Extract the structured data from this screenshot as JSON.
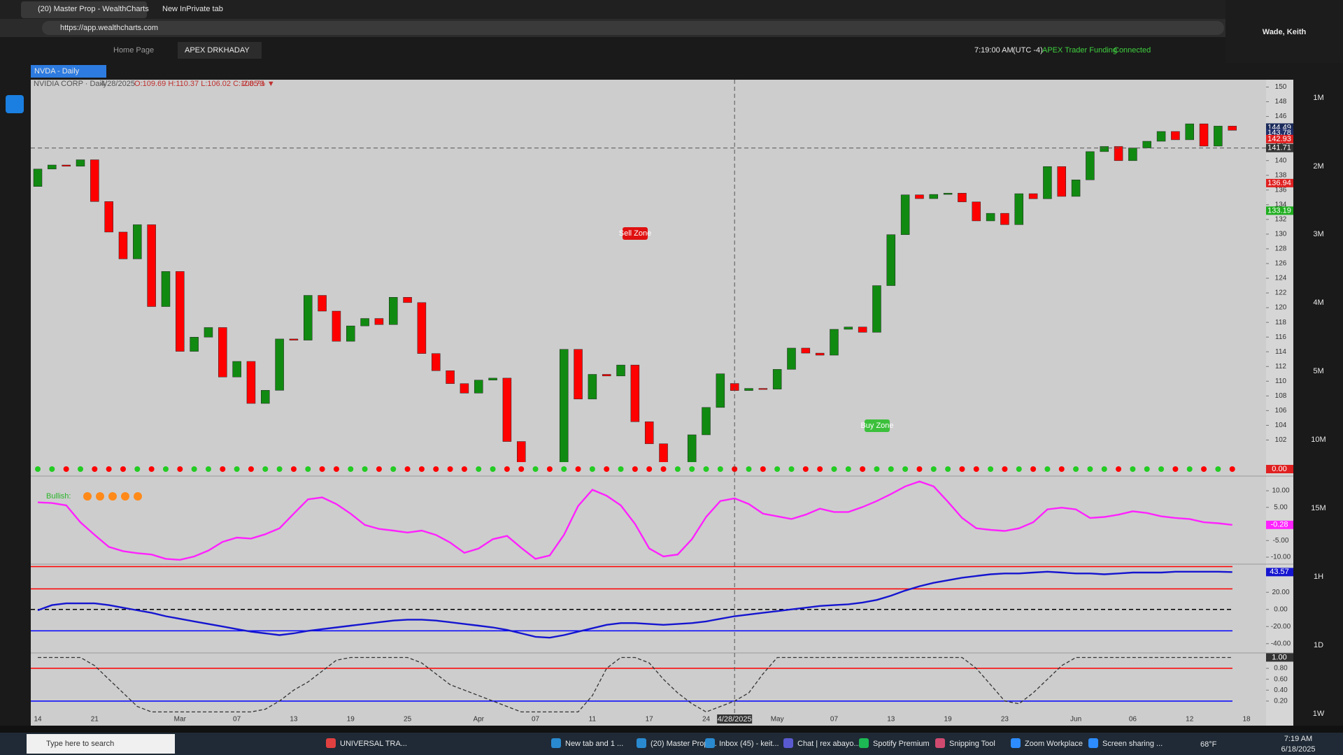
{
  "browser": {
    "tabs": [
      "(20) Master Prop - WealthCharts",
      "New InPrivate tab"
    ],
    "url": "https://app.wealthcharts.com",
    "profile": "Wade, Keith"
  },
  "app": {
    "tabs": [
      "Home Page",
      "APEX DRKHADAY"
    ],
    "time": "7:19:00 AM",
    "timezone": "(UTC -4)",
    "account": "APEX Trader Funding",
    "status": "Connected",
    "symbol_tab": "NVDA - Daily",
    "symbol": "NVIDIA CORP · Daily",
    "date": "4/28/2025",
    "ohlc": "O:109.69 H:110.37 L:106.02 C:108.73",
    "change": "-2.05% ▼",
    "annotations": {
      "sell": "Sell Zone",
      "buy": "Buy Zone",
      "bullish": "Bullish:"
    },
    "timeframes": [
      "1M",
      "2M",
      "3M",
      "4M",
      "5M",
      "10M",
      "15M",
      "1H",
      "1D",
      "1W"
    ]
  },
  "chart_data": [
    {
      "type": "candlestick",
      "categories": [
        "14",
        null,
        null,
        null,
        "21",
        null,
        null,
        null,
        null,
        null,
        "Mar",
        null,
        null,
        null,
        "07",
        null,
        null,
        null,
        "13",
        null,
        null,
        null,
        "19",
        null,
        null,
        null,
        "25",
        null,
        null,
        null,
        null,
        "Apr",
        null,
        null,
        null,
        "07",
        null,
        null,
        null,
        "11",
        null,
        null,
        null,
        "17",
        null,
        null,
        null,
        "24",
        null,
        "4/28/2025",
        null,
        null,
        "May",
        null,
        null,
        null,
        "07",
        null,
        null,
        null,
        "13",
        null,
        null,
        null,
        "19",
        null,
        null,
        null,
        "23",
        null,
        null,
        null,
        null,
        "Jun",
        null,
        null,
        null,
        "06",
        null,
        null,
        null,
        "12",
        null,
        null,
        null,
        "18"
      ],
      "open": [
        136.48,
        138.85,
        139.4,
        139.23,
        140.11,
        134.43,
        130.28,
        126.63,
        131.28,
        120.15,
        124.92,
        114.06,
        115.99,
        117.3,
        110.57,
        112.69,
        106.98,
        108.76,
        115.74,
        115.58,
        121.67,
        119.53,
        115.43,
        117.52,
        118.53,
        117.7,
        121.41,
        120.69,
        113.76,
        111.43,
        109.67,
        108.38,
        110.15,
        110.42,
        101.8,
        94.31,
        97.64,
        96.3,
        114.33,
        107.57,
        110.93,
        110.71,
        112.2,
        104.49,
        101.49,
        96.91,
        98.89,
        102.71,
        106.43,
        109.69,
        108.73,
        109.02,
        108.92,
        111.61,
        114.5,
        113.82,
        113.54,
        117.06,
        117.37,
        116.65,
        123.0,
        129.93,
        135.34,
        134.83,
        135.4,
        135.57,
        134.38,
        131.8,
        132.83,
        131.29,
        135.5,
        134.81,
        139.19,
        135.13,
        137.38,
        141.22,
        141.92,
        139.99,
        141.72,
        142.63,
        143.96,
        142.83,
        145.0,
        141.97,
        144.69,
        null
      ],
      "close": [
        138.85,
        139.4,
        139.23,
        140.11,
        134.43,
        130.28,
        126.63,
        131.28,
        120.15,
        124.92,
        114.06,
        115.99,
        117.3,
        110.57,
        112.69,
        106.98,
        108.76,
        115.74,
        115.58,
        121.67,
        119.53,
        115.43,
        117.52,
        118.53,
        117.7,
        121.41,
        120.69,
        113.76,
        111.43,
        109.67,
        108.38,
        110.15,
        110.42,
        101.8,
        94.31,
        97.64,
        96.3,
        114.33,
        107.57,
        110.93,
        110.71,
        112.2,
        104.49,
        101.49,
        96.91,
        98.89,
        102.71,
        106.43,
        111.01,
        108.73,
        109.02,
        108.92,
        111.61,
        114.5,
        113.82,
        113.54,
        117.06,
        117.37,
        116.65,
        123.0,
        129.93,
        135.34,
        134.83,
        135.4,
        135.57,
        134.38,
        131.8,
        132.83,
        131.29,
        135.5,
        134.81,
        139.19,
        135.13,
        137.38,
        141.22,
        141.92,
        139.99,
        141.72,
        142.63,
        143.96,
        142.83,
        145.0,
        141.97,
        144.69,
        144.12,
        null
      ],
      "up_color": "#118a11",
      "down_color": "#ff0000",
      "ylim": [
        99,
        151
      ],
      "yticks": [
        102,
        104,
        106,
        108,
        110,
        112,
        114,
        116,
        118,
        120,
        122,
        124,
        126,
        128,
        130,
        132,
        134,
        136,
        138,
        140,
        142,
        144,
        146,
        148,
        150
      ],
      "price_tags": [
        {
          "value": 144.49,
          "color": "#1a2a5a"
        },
        {
          "value": 143.78,
          "color": "#22306a"
        },
        {
          "value": 142.93,
          "color": "#e02020"
        },
        {
          "value": 141.71,
          "color": "#333333"
        },
        {
          "value": 136.94,
          "color": "#e02020"
        },
        {
          "value": 133.19,
          "color": "#1fae1f"
        }
      ],
      "signal_tag": {
        "value": 0,
        "label": "0.00"
      }
    },
    {
      "type": "line",
      "color": "#ff22ff",
      "ylim": [
        -11.9,
        14
      ],
      "yticks": [
        {
          "value": 10,
          "label": "10.00"
        },
        {
          "value": 5,
          "label": "5.00"
        },
        {
          "value": -5,
          "label": "-5.00"
        },
        {
          "value": -10,
          "label": "-10.00"
        }
      ],
      "values": [
        6.5,
        6.3,
        5.6,
        0.5,
        -3.3,
        -6.9,
        -8.2,
        -8.8,
        -9.2,
        -10.5,
        -10.8,
        -9.8,
        -8.0,
        -5.4,
        -4.1,
        -4.4,
        -3.1,
        -1.3,
        3.1,
        7.4,
        8.0,
        6.0,
        3.1,
        -0.3,
        -1.5,
        -2.0,
        -2.6,
        -2.0,
        -3.3,
        -5.6,
        -8.7,
        -7.4,
        -4.6,
        -3.6,
        -7.2,
        -10.5,
        -9.5,
        -3.3,
        5.4,
        10.3,
        8.5,
        5.6,
        0,
        -7.4,
        -9.8,
        -9.2,
        -4.6,
        2.1,
        6.9,
        7.7,
        6.0,
        3.1,
        2.3,
        1.5,
        2.8,
        4.6,
        3.6,
        3.6,
        5.1,
        6.9,
        9.0,
        11.3,
        12.8,
        11.3,
        6.7,
        1.8,
        -1.3,
        -1.8,
        -2.1,
        -1.3,
        0.5,
        4.4,
        4.9,
        4.4,
        1.8,
        2.1,
        2.8,
        3.8,
        3.3,
        2.3,
        1.8,
        1.5,
        0.5,
        0.2,
        -0.28,
        null
      ]
    },
    {
      "type": "line",
      "color": "#1515d0",
      "ylim": [
        -50,
        52
      ],
      "yticks": [
        {
          "value": 20,
          "label": "20.00"
        },
        {
          "value": 0,
          "label": "0.00"
        },
        {
          "value": -20,
          "label": "-20.00"
        },
        {
          "value": -40,
          "label": "-40.00"
        }
      ],
      "levels": [
        {
          "value": 50,
          "color": "#ff0000"
        },
        {
          "value": 24,
          "color": "#ff0000"
        },
        {
          "value": 0,
          "color": "#000000",
          "dashed": true
        },
        {
          "value": -25,
          "color": "#0000ff"
        }
      ],
      "values": [
        -1,
        5,
        7,
        7,
        7,
        5,
        2,
        -1,
        -4,
        -8,
        -11,
        -14,
        -17,
        -20,
        -23,
        -26,
        -28,
        -30,
        -28,
        -25,
        -23,
        -21,
        -19,
        -17,
        -15,
        -13,
        -12,
        -12,
        -13,
        -15,
        -17,
        -19,
        -21,
        -24,
        -28,
        -32,
        -33,
        -30,
        -26,
        -22,
        -18,
        -16,
        -16,
        -17,
        -18,
        -17,
        -16,
        -14,
        -11,
        -8,
        -6,
        -4,
        -2,
        0,
        2,
        4,
        5,
        6,
        8,
        11,
        16,
        22,
        27,
        31,
        34,
        37,
        39,
        41,
        42,
        42,
        43,
        44,
        43,
        42,
        42,
        41,
        42,
        43,
        43,
        43,
        44,
        44,
        44,
        44,
        43.57,
        null
      ]
    },
    {
      "type": "line",
      "color": "#333333",
      "dashed": true,
      "ylim": [
        -0.02,
        1.07
      ],
      "yticks": [
        {
          "value": 0.8,
          "label": "0.80"
        },
        {
          "value": 0.6,
          "label": "0.60"
        },
        {
          "value": 0.4,
          "label": "0.40"
        },
        {
          "value": 0.2,
          "label": "0.20"
        }
      ],
      "levels": [
        {
          "value": 0.8,
          "color": "#ff0000"
        },
        {
          "value": 0.2,
          "color": "#0000ff"
        }
      ],
      "tag": {
        "value": 1,
        "label": "1.00"
      },
      "values": [
        1,
        1,
        1,
        1,
        0.85,
        0.6,
        0.35,
        0.1,
        0,
        0,
        0,
        0,
        0,
        0,
        0,
        0,
        0.05,
        0.2,
        0.4,
        0.55,
        0.75,
        0.95,
        1,
        1,
        1,
        1,
        1,
        0.9,
        0.7,
        0.5,
        0.4,
        0.3,
        0.2,
        0.1,
        0,
        0,
        0,
        0,
        0,
        0.3,
        0.8,
        1,
        1,
        0.9,
        0.6,
        0.35,
        0.15,
        0,
        0.1,
        0.2,
        0.35,
        0.7,
        1,
        1,
        1,
        1,
        1,
        1,
        1,
        1,
        1,
        1,
        1,
        1,
        1,
        1,
        0.8,
        0.5,
        0.2,
        0.15,
        0.35,
        0.6,
        0.85,
        1,
        1,
        1,
        1,
        1,
        1,
        1,
        1,
        1,
        1,
        1,
        1,
        null
      ]
    }
  ],
  "taskbar": {
    "search": "Type here to search",
    "apps": [
      "UNIVERSAL TRA...",
      "New tab and 1 ...",
      "(20) Master Prop ...",
      "Inbox (45) - keit...",
      "Chat | rex abayo...",
      "Spotify Premium",
      "Snipping Tool",
      "Zoom Workplace",
      "Screen sharing ..."
    ],
    "weather": "68°F",
    "time": "7:19 AM",
    "date": "6/18/2025"
  }
}
